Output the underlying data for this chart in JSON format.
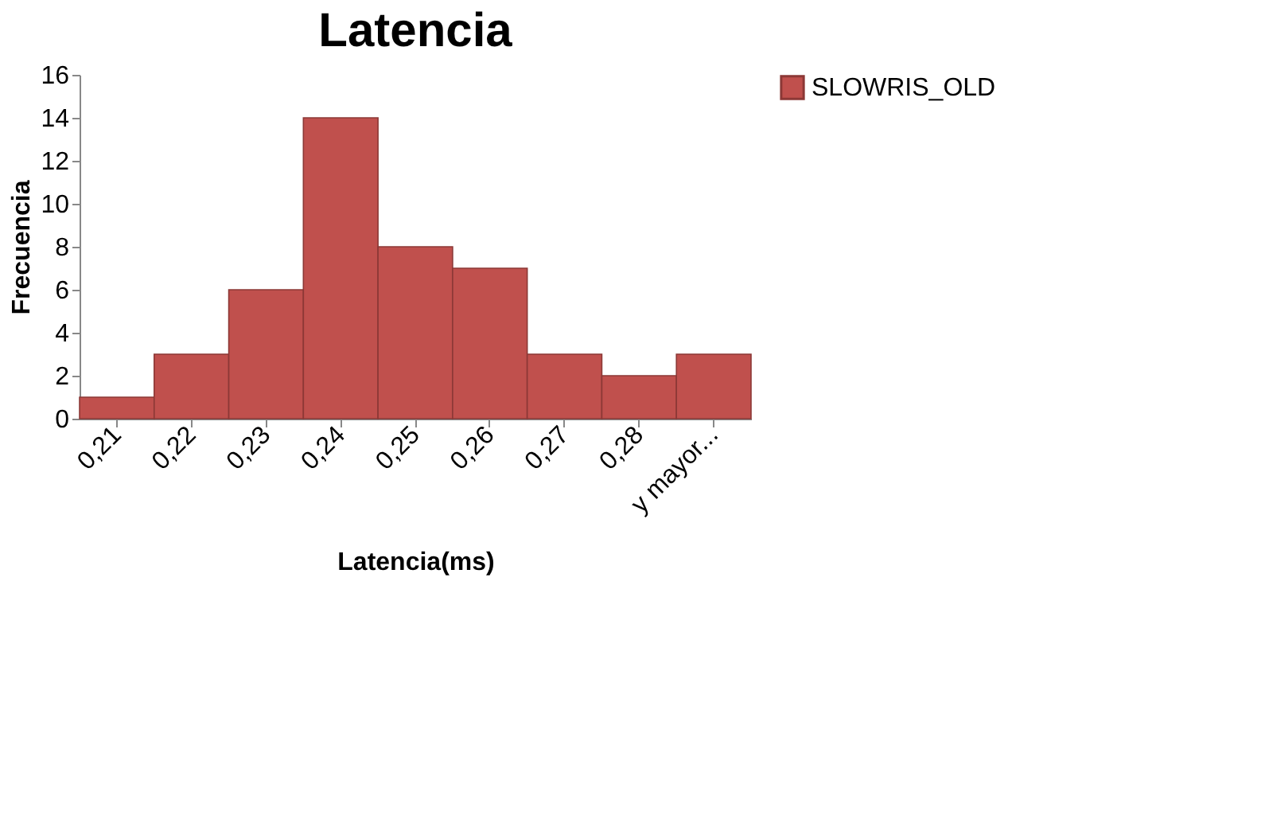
{
  "chart_data": {
    "type": "bar",
    "title": "Latencia",
    "xlabel": "Latencia(ms)",
    "ylabel": "Frecuencia",
    "categories": [
      "0,21",
      "0,22",
      "0,23",
      "0,24",
      "0,25",
      "0,26",
      "0,27",
      "0,28",
      "y mayor..."
    ],
    "series": [
      {
        "name": "SLOWRIS_OLD",
        "color": "#c0504d",
        "values": [
          1,
          3,
          6,
          14,
          8,
          7,
          3,
          2,
          3
        ]
      }
    ],
    "ylim": [
      0,
      16
    ],
    "yticks": [
      0,
      2,
      4,
      6,
      8,
      10,
      12,
      14,
      16
    ],
    "grid": false,
    "legend": "right"
  }
}
